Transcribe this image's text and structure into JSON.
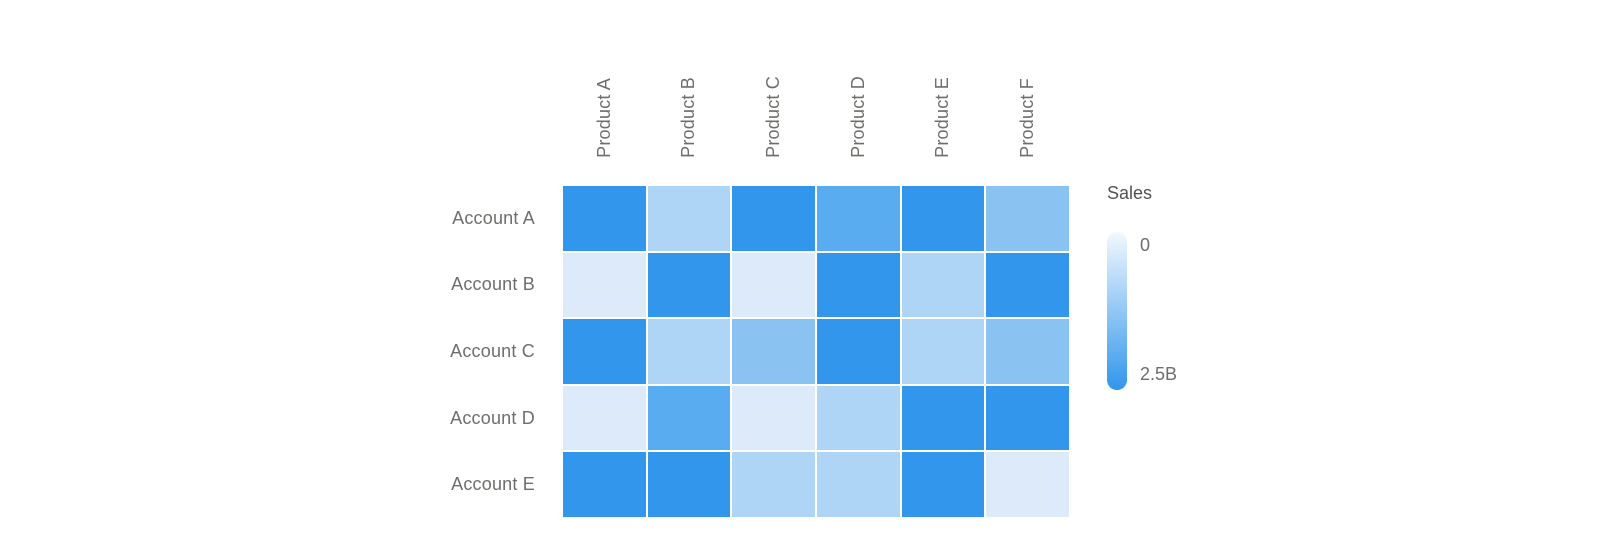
{
  "chart_data": {
    "type": "heatmap",
    "title": "",
    "series_name": "Sales",
    "x_categories": [
      "Product A",
      "Product B",
      "Product C",
      "Product D",
      "Product E",
      "Product F"
    ],
    "y_categories": [
      "Account A",
      "Account B",
      "Account C",
      "Account D",
      "Account E"
    ],
    "value_unit": "B",
    "value_range": [
      0,
      2.5
    ],
    "values_billions": [
      [
        2.4,
        0.8,
        2.4,
        1.9,
        2.4,
        1.3
      ],
      [
        0.2,
        2.4,
        0.2,
        2.4,
        0.8,
        2.4
      ],
      [
        2.4,
        0.8,
        1.3,
        2.4,
        0.8,
        1.3
      ],
      [
        0.2,
        1.9,
        0.2,
        0.8,
        2.4,
        2.4
      ],
      [
        2.4,
        2.4,
        0.8,
        0.8,
        2.4,
        0.2
      ]
    ],
    "cell_colors": [
      [
        "#3296EC",
        "#AED4F6",
        "#3296EC",
        "#59ACEF",
        "#3296EC",
        "#8AC2F2"
      ],
      [
        "#DCEAF9",
        "#3296EC",
        "#DCEAF9",
        "#3296EC",
        "#AED4F6",
        "#3296EC"
      ],
      [
        "#3296EC",
        "#AED4F6",
        "#8AC2F2",
        "#3296EC",
        "#AED4F6",
        "#8AC2F2"
      ],
      [
        "#DCEAF9",
        "#59ACEF",
        "#DCEAF9",
        "#AED4F6",
        "#3296EC",
        "#3296EC"
      ],
      [
        "#3296EC",
        "#3296EC",
        "#AED4F6",
        "#AED4F6",
        "#3296EC",
        "#DCEAF9"
      ]
    ],
    "legend": {
      "title": "Sales",
      "min_label": "0",
      "max_label": "2.5B",
      "min_color": "#F2F8FE",
      "max_color": "#3296EC",
      "position": "right"
    },
    "grid_gap_color": "#FFFFFF",
    "label_text_color": "#706E6B"
  }
}
